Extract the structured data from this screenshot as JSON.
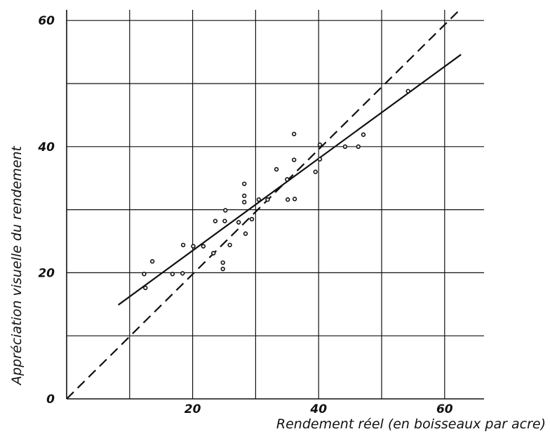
{
  "chart_data": {
    "type": "scatter",
    "title": "",
    "xlabel": "Rendement réel (en boisseaux par acre)",
    "ylabel": "Appréciation visuelle du rendement",
    "xlim": [
      0,
      66
    ],
    "ylim": [
      0,
      66
    ],
    "x_ticks": [
      "20",
      "40",
      "60"
    ],
    "y_ticks": [
      "0",
      "20",
      "40",
      "60"
    ],
    "grid": true,
    "series": [
      {
        "kind": "points",
        "points": [
          [
            12.3,
            19.8
          ],
          [
            12.5,
            17.6
          ],
          [
            13.6,
            21.8
          ],
          [
            16.8,
            19.8
          ],
          [
            18.4,
            19.9
          ],
          [
            18.5,
            24.4
          ],
          [
            20.1,
            24.2
          ],
          [
            21.7,
            24.2
          ],
          [
            23.3,
            23.1
          ],
          [
            23.6,
            28.2
          ],
          [
            24.8,
            21.6
          ],
          [
            24.8,
            20.6
          ],
          [
            25.1,
            28.2
          ],
          [
            25.2,
            29.9
          ],
          [
            25.9,
            24.4
          ],
          [
            27.3,
            28.0
          ],
          [
            28.2,
            34.1
          ],
          [
            28.2,
            32.2
          ],
          [
            28.2,
            31.2
          ],
          [
            28.4,
            26.2
          ],
          [
            29.4,
            28.5
          ],
          [
            30.5,
            31.6
          ],
          [
            31.9,
            31.6
          ],
          [
            33.3,
            36.4
          ],
          [
            35.0,
            34.8
          ],
          [
            35.1,
            31.6
          ],
          [
            36.1,
            42.0
          ],
          [
            36.1,
            37.9
          ],
          [
            36.2,
            31.7
          ],
          [
            39.5,
            36.0
          ],
          [
            40.2,
            38.0
          ],
          [
            40.2,
            40.3
          ],
          [
            44.2,
            40.0
          ],
          [
            46.3,
            40.0
          ],
          [
            47.1,
            41.9
          ],
          [
            54.2,
            48.8
          ]
        ]
      },
      {
        "kind": "regression-line",
        "style": "solid",
        "points": [
          [
            8.2,
            14.9
          ],
          [
            62.6,
            54.6
          ]
        ]
      },
      {
        "kind": "identity-line",
        "style": "dashed",
        "points": [
          [
            0,
            0
          ],
          [
            62.7,
            62.0
          ]
        ]
      }
    ]
  }
}
